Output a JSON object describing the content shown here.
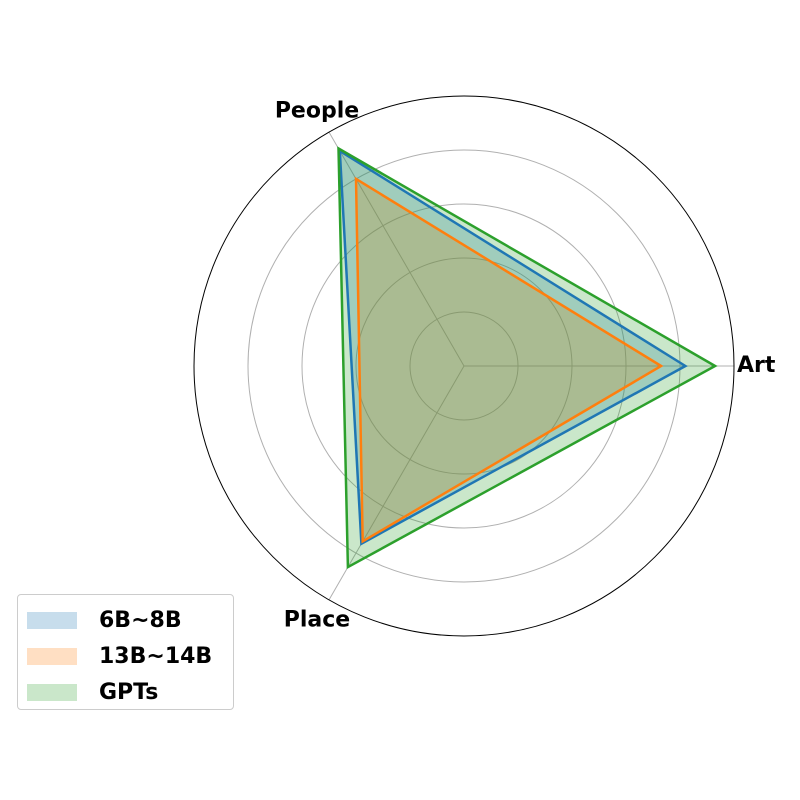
{
  "chart_data": {
    "type": "radar",
    "axes": [
      "Art",
      "People",
      "Place"
    ],
    "rlim": [
      0,
      1
    ],
    "grid": true,
    "legend_position": "lower-left",
    "series": [
      {
        "name": "6B~8B",
        "color": "#1f77b4",
        "values": [
          0.82,
          0.92,
          0.76
        ]
      },
      {
        "name": "13B~14B",
        "color": "#ff7f0e",
        "values": [
          0.73,
          0.8,
          0.75
        ]
      },
      {
        "name": "GPTs",
        "color": "#2ca02c",
        "values": [
          0.93,
          0.93,
          0.86
        ]
      }
    ]
  }
}
